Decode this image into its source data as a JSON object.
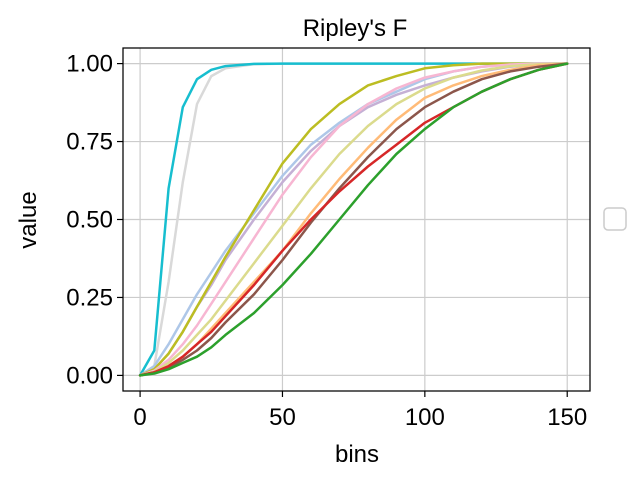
{
  "chart_data": {
    "type": "line",
    "title": "Ripley's F",
    "xlabel": "bins",
    "ylabel": "value",
    "xlim": [
      -6,
      158
    ],
    "ylim": [
      -0.05,
      1.05
    ],
    "xticks": [
      0,
      50,
      100,
      150
    ],
    "xtick_labels": [
      "0",
      "50",
      "100",
      "150"
    ],
    "yticks": [
      0,
      0.25,
      0.5,
      0.75,
      1.0
    ],
    "ytick_labels": [
      "0.00",
      "0.25",
      "0.50",
      "0.75",
      "1.00"
    ],
    "grid": true,
    "legend": "right, empty",
    "x": [
      0,
      5,
      10,
      15,
      20,
      25,
      30,
      40,
      50,
      60,
      70,
      80,
      90,
      100,
      110,
      120,
      130,
      140,
      150
    ],
    "series": [
      {
        "color": "#d9d9d9",
        "values": [
          0,
          0.03,
          0.3,
          0.62,
          0.87,
          0.96,
          0.985,
          0.998,
          1,
          1,
          1,
          1,
          1,
          1,
          1,
          1,
          1,
          1,
          1
        ]
      },
      {
        "color": "#17becf",
        "values": [
          0,
          0.08,
          0.6,
          0.86,
          0.95,
          0.98,
          0.992,
          0.999,
          1,
          1,
          1,
          1,
          1,
          1,
          1,
          1,
          1,
          1,
          1
        ]
      },
      {
        "color": "#aec7e8",
        "values": [
          0,
          0.03,
          0.1,
          0.18,
          0.26,
          0.33,
          0.4,
          0.52,
          0.64,
          0.74,
          0.81,
          0.87,
          0.91,
          0.95,
          0.975,
          0.99,
          0.997,
          1,
          1
        ]
      },
      {
        "color": "#c5b0d5",
        "values": [
          0,
          0.02,
          0.07,
          0.14,
          0.22,
          0.29,
          0.37,
          0.5,
          0.62,
          0.72,
          0.8,
          0.86,
          0.9,
          0.93,
          0.955,
          0.975,
          0.99,
          0.998,
          1
        ]
      },
      {
        "color": "#bcbd22",
        "values": [
          0,
          0.02,
          0.07,
          0.14,
          0.22,
          0.3,
          0.38,
          0.53,
          0.68,
          0.79,
          0.87,
          0.93,
          0.96,
          0.985,
          0.995,
          1,
          1,
          1,
          1
        ]
      },
      {
        "color": "#f7b6d2",
        "values": [
          0,
          0.015,
          0.05,
          0.1,
          0.16,
          0.23,
          0.3,
          0.44,
          0.58,
          0.7,
          0.8,
          0.87,
          0.92,
          0.955,
          0.975,
          0.99,
          0.997,
          1,
          1
        ]
      },
      {
        "color": "#dbdb8d",
        "values": [
          0,
          0.012,
          0.04,
          0.08,
          0.13,
          0.18,
          0.24,
          0.36,
          0.48,
          0.6,
          0.71,
          0.8,
          0.87,
          0.92,
          0.955,
          0.978,
          0.992,
          0.998,
          1
        ]
      },
      {
        "color": "#ffbb78",
        "values": [
          0,
          0.01,
          0.03,
          0.06,
          0.1,
          0.15,
          0.2,
          0.3,
          0.4,
          0.52,
          0.63,
          0.73,
          0.82,
          0.89,
          0.93,
          0.96,
          0.98,
          0.995,
          1
        ]
      },
      {
        "color": "#8c564b",
        "values": [
          0,
          0.01,
          0.025,
          0.05,
          0.08,
          0.12,
          0.17,
          0.26,
          0.37,
          0.49,
          0.6,
          0.7,
          0.79,
          0.86,
          0.91,
          0.95,
          0.975,
          0.99,
          1
        ]
      },
      {
        "color": "#d62728",
        "values": [
          0,
          0.01,
          0.03,
          0.06,
          0.1,
          0.14,
          0.19,
          0.29,
          0.4,
          0.5,
          0.59,
          0.67,
          0.74,
          0.81,
          0.86,
          0.91,
          0.95,
          0.98,
          1
        ]
      },
      {
        "color": "#2ca02c",
        "values": [
          0,
          0.006,
          0.02,
          0.04,
          0.06,
          0.09,
          0.13,
          0.2,
          0.29,
          0.39,
          0.5,
          0.61,
          0.71,
          0.79,
          0.86,
          0.91,
          0.95,
          0.98,
          1
        ]
      }
    ]
  }
}
